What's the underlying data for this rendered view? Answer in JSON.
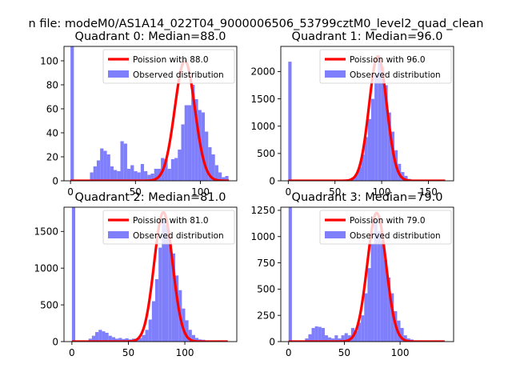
{
  "figure": {
    "suptitle": "n file: modeM0/AS1A14_022T04_9000006506_53799cztM0_level2_quad_clean"
  },
  "colors": {
    "hist": "#7f7ffb",
    "fit": "#ff0000",
    "axis": "#000000"
  },
  "chart_data": [
    {
      "type": "bar",
      "title": "Quadrant 0: Median=88.0",
      "legend": {
        "fit_label": "Poission with 88.0",
        "hist_label": "Observed distribution",
        "placement": "top-right"
      },
      "xlim": [
        -5,
        128
      ],
      "ylim": [
        0,
        112
      ],
      "xticks": [
        0,
        50,
        100
      ],
      "yticks": [
        0,
        20,
        40,
        60,
        80,
        100
      ],
      "bin_width": 2.6,
      "bins": [
        [
          0,
          112
        ],
        [
          15,
          7
        ],
        [
          17.6,
          12
        ],
        [
          20.2,
          17
        ],
        [
          22.8,
          27
        ],
        [
          25.4,
          25
        ],
        [
          28,
          22
        ],
        [
          30.6,
          12
        ],
        [
          33.2,
          9
        ],
        [
          35.8,
          8
        ],
        [
          38.4,
          33
        ],
        [
          41,
          31
        ],
        [
          43.6,
          10
        ],
        [
          46.2,
          13
        ],
        [
          48.8,
          8
        ],
        [
          51.4,
          7
        ],
        [
          54,
          14
        ],
        [
          56.6,
          8
        ],
        [
          59.2,
          5
        ],
        [
          61.8,
          6
        ],
        [
          64.4,
          10
        ],
        [
          67,
          10
        ],
        [
          69.6,
          19
        ],
        [
          72.2,
          18
        ],
        [
          74.8,
          10
        ],
        [
          77.4,
          18
        ],
        [
          80,
          19
        ],
        [
          82.6,
          26
        ],
        [
          85.2,
          47
        ],
        [
          87.8,
          63
        ],
        [
          90.4,
          63
        ],
        [
          93,
          80
        ],
        [
          95.6,
          68
        ],
        [
          98.2,
          59
        ],
        [
          100.8,
          57
        ],
        [
          103.4,
          41
        ],
        [
          106,
          28
        ],
        [
          108.6,
          22
        ],
        [
          111.2,
          13
        ],
        [
          113.8,
          7
        ],
        [
          116.4,
          3
        ],
        [
          119,
          4
        ]
      ],
      "fit": {
        "mean": 88.0,
        "sigma": 7.7,
        "peak": 100,
        "x_start": 0,
        "x_end": 122
      }
    },
    {
      "type": "bar",
      "title": "Quadrant 1: Median=96.0",
      "legend": {
        "fit_label": "Poission with 96.0",
        "hist_label": "Observed distribution",
        "placement": "top-right"
      },
      "xlim": [
        -8,
        177
      ],
      "ylim": [
        0,
        2460
      ],
      "xticks": [
        0,
        50,
        100,
        150
      ],
      "yticks": [
        0,
        500,
        1000,
        1500,
        2000
      ],
      "bin_width": 3.55,
      "bins": [
        [
          0,
          2180
        ],
        [
          63.9,
          30
        ],
        [
          67.45,
          60
        ],
        [
          71,
          120
        ],
        [
          74.55,
          250
        ],
        [
          78.1,
          480
        ],
        [
          81.65,
          800
        ],
        [
          85.2,
          1130
        ],
        [
          88.75,
          1500
        ],
        [
          92.3,
          1950
        ],
        [
          95.85,
          2200
        ],
        [
          99.4,
          2090
        ],
        [
          102.95,
          1750
        ],
        [
          106.5,
          1250
        ],
        [
          110.05,
          900
        ],
        [
          113.6,
          560
        ],
        [
          117.15,
          310
        ],
        [
          120.7,
          160
        ],
        [
          124.25,
          90
        ],
        [
          127.8,
          35
        ],
        [
          131.35,
          10
        ]
      ],
      "fit": {
        "mean": 96.0,
        "sigma": 9.5,
        "peak": 2280,
        "x_start": 0,
        "x_end": 168
      }
    },
    {
      "type": "bar",
      "title": "Quadrant 2: Median=81.0",
      "legend": {
        "fit_label": "Poission with 81.0",
        "hist_label": "Observed distribution",
        "placement": "top-right"
      },
      "xlim": [
        -7,
        146
      ],
      "ylim": [
        0,
        1830
      ],
      "xticks": [
        0,
        50,
        100
      ],
      "yticks": [
        0,
        500,
        1000,
        1500
      ],
      "bin_width": 2.95,
      "bins": [
        [
          0,
          1830
        ],
        [
          14.75,
          40
        ],
        [
          17.7,
          80
        ],
        [
          20.65,
          130
        ],
        [
          23.6,
          160
        ],
        [
          26.55,
          140
        ],
        [
          29.5,
          120
        ],
        [
          32.45,
          80
        ],
        [
          35.4,
          60
        ],
        [
          38.35,
          40
        ],
        [
          41.3,
          50
        ],
        [
          44.25,
          35
        ],
        [
          47.2,
          45
        ],
        [
          50.15,
          30
        ],
        [
          53.1,
          40
        ],
        [
          56.05,
          30
        ],
        [
          59,
          50
        ],
        [
          61.95,
          90
        ],
        [
          64.9,
          160
        ],
        [
          67.85,
          300
        ],
        [
          70.8,
          550
        ],
        [
          73.75,
          850
        ],
        [
          76.7,
          1280
        ],
        [
          79.65,
          1660
        ],
        [
          82.6,
          1590
        ],
        [
          85.55,
          1330
        ],
        [
          88.5,
          1200
        ],
        [
          91.45,
          900
        ],
        [
          94.4,
          700
        ],
        [
          97.35,
          450
        ],
        [
          100.3,
          290
        ],
        [
          103.25,
          160
        ],
        [
          106.2,
          90
        ],
        [
          109.15,
          50
        ],
        [
          112.1,
          30
        ],
        [
          115.05,
          25
        ]
      ],
      "fit": {
        "mean": 81.0,
        "sigma": 8.2,
        "peak": 1760,
        "x_start": 0,
        "x_end": 138
      }
    },
    {
      "type": "bar",
      "title": "Quadrant 3: Median=79.0",
      "legend": {
        "fit_label": "Poission with 79.0",
        "hist_label": "Observed distribution",
        "placement": "top-right"
      },
      "xlim": [
        -7,
        148
      ],
      "ylim": [
        0,
        1280
      ],
      "xticks": [
        0,
        50,
        100
      ],
      "yticks": [
        0,
        250,
        500,
        750,
        1000,
        1250
      ],
      "bin_width": 2.95,
      "bins": [
        [
          0,
          1280
        ],
        [
          14.75,
          30
        ],
        [
          17.7,
          70
        ],
        [
          20.65,
          130
        ],
        [
          23.6,
          145
        ],
        [
          26.55,
          140
        ],
        [
          29.5,
          130
        ],
        [
          32.45,
          60
        ],
        [
          35.4,
          40
        ],
        [
          38.35,
          30
        ],
        [
          41.3,
          60
        ],
        [
          44.25,
          30
        ],
        [
          47.2,
          60
        ],
        [
          50.15,
          80
        ],
        [
          53.1,
          60
        ],
        [
          56.05,
          130
        ],
        [
          59,
          100
        ],
        [
          61.95,
          180
        ],
        [
          64.9,
          250
        ],
        [
          67.85,
          460
        ],
        [
          70.8,
          700
        ],
        [
          73.75,
          930
        ],
        [
          76.7,
          1150
        ],
        [
          79.65,
          1050
        ],
        [
          82.6,
          960
        ],
        [
          85.55,
          780
        ],
        [
          88.5,
          610
        ],
        [
          91.45,
          460
        ],
        [
          94.4,
          290
        ],
        [
          97.35,
          200
        ],
        [
          100.3,
          130
        ],
        [
          103.25,
          60
        ],
        [
          106.2,
          30
        ],
        [
          109.15,
          20
        ]
      ],
      "fit": {
        "mean": 79.0,
        "sigma": 8.4,
        "peak": 1225,
        "x_start": 0,
        "x_end": 140
      }
    }
  ]
}
